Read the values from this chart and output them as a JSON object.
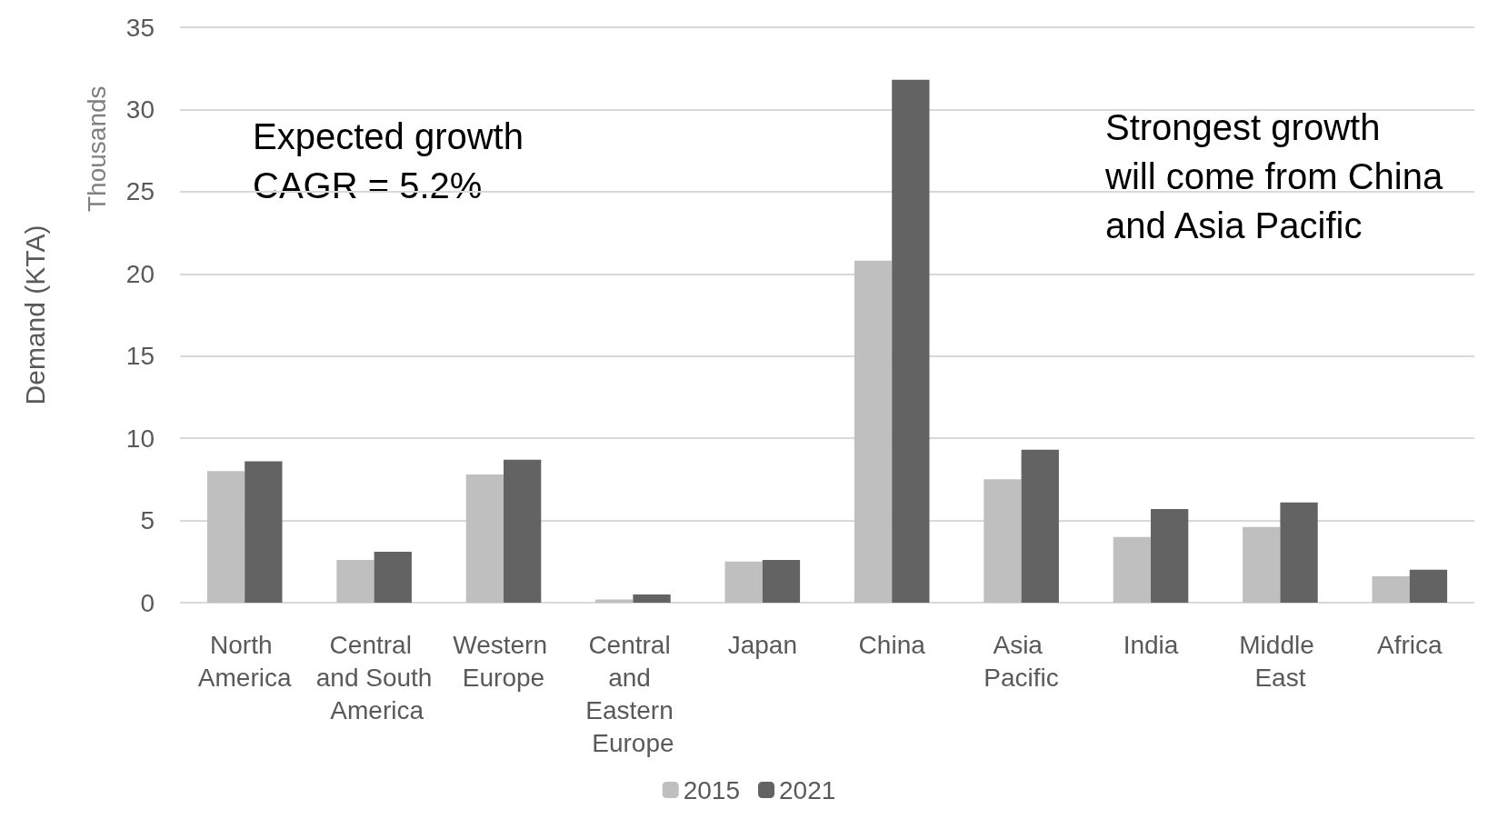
{
  "chart_data": {
    "type": "bar",
    "ylabel": "Demand (KTA)",
    "categories": [
      "North America",
      "Central and South America",
      "Western Europe",
      "Central and Eastern Europe",
      "Japan",
      "China",
      "Asia Pacific",
      "India",
      "Middle East",
      "Africa"
    ],
    "series": [
      {
        "name": "2015",
        "color": "#bfbfbf",
        "values": [
          8.0,
          2.6,
          7.8,
          0.2,
          2.5,
          20.8,
          7.5,
          4.0,
          4.6,
          1.6
        ]
      },
      {
        "name": "2021",
        "color": "#636363",
        "values": [
          8.6,
          3.1,
          8.7,
          0.5,
          2.6,
          31.8,
          9.3,
          5.7,
          6.1,
          2.0
        ]
      }
    ],
    "ylim": [
      0,
      35
    ],
    "yticks": [
      0,
      5,
      10,
      15,
      20,
      25,
      30,
      35
    ],
    "grid": "y",
    "legend": "bottom",
    "annotations": [
      "Thousands",
      "Expected growth\nCAGR = 5.2%",
      "Strongest growth\nwill come from China\nand Asia Pacific"
    ]
  }
}
